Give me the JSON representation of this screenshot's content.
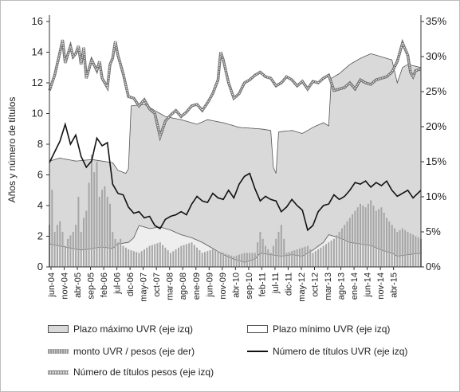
{
  "chart_data": {
    "type": "line",
    "title": "",
    "ylabel": "Años y número de títulos",
    "y_left_ticks": [
      "0",
      "2",
      "4",
      "6",
      "8",
      "10",
      "12",
      "14",
      "16"
    ],
    "y_right_ticks": [
      "0%",
      "5%",
      "10%",
      "15%",
      "20%",
      "25%",
      "30%",
      "35%"
    ],
    "ylim_left": [
      0,
      16
    ],
    "ylim_right": [
      0,
      0.35
    ],
    "x_ticks": [
      "jun-04",
      "nov-04",
      "abr-05",
      "sep-05",
      "feb-06",
      "jul-06",
      "dic-06",
      "may-07",
      "oct-07",
      "mar-08",
      "ago-08",
      "ene-09",
      "jun-09",
      "nov-09",
      "abr-10",
      "sep-10",
      "feb-11",
      "jul-11",
      "dic-11",
      "may-12",
      "oct-12",
      "mar-13",
      "ago-13",
      "ene-14",
      "jun-14",
      "nov-14",
      "abr-15"
    ],
    "period": {
      "start": "jun-04",
      "end": "jun-15",
      "step": "1 month"
    },
    "series": [
      {
        "name": "Plazo máximo UVR (eje izq)",
        "kind": "area",
        "axis": "left",
        "color": "#d9d9d9",
        "anchors": [
          [
            0,
            6.9
          ],
          [
            4,
            7.1
          ],
          [
            10,
            6.9
          ],
          [
            16,
            7.0
          ],
          [
            20,
            6.9
          ],
          [
            24,
            6.8
          ],
          [
            26,
            6.3
          ],
          [
            29,
            6.1
          ],
          [
            30,
            6.4
          ],
          [
            31,
            10.5
          ],
          [
            36,
            10.6
          ],
          [
            40,
            10.2
          ],
          [
            44,
            9.8
          ],
          [
            50,
            9.6
          ],
          [
            56,
            9.3
          ],
          [
            60,
            9.6
          ],
          [
            66,
            9.4
          ],
          [
            72,
            9.1
          ],
          [
            80,
            9.0
          ],
          [
            84,
            8.9
          ],
          [
            85,
            6.5
          ],
          [
            86,
            6.1
          ],
          [
            87,
            8.8
          ],
          [
            92,
            8.9
          ],
          [
            96,
            8.7
          ],
          [
            100,
            9.1
          ],
          [
            104,
            9.4
          ],
          [
            106,
            9.2
          ],
          [
            107,
            12.3
          ],
          [
            110,
            12.6
          ],
          [
            114,
            13.2
          ],
          [
            118,
            13.6
          ],
          [
            122,
            13.9
          ],
          [
            126,
            13.7
          ],
          [
            130,
            13.5
          ],
          [
            132,
            12.0
          ],
          [
            134,
            13.0
          ],
          [
            136,
            13.2
          ],
          [
            141,
            13.0
          ]
        ]
      },
      {
        "name": "Plazo mínimo UVR (eje izq)",
        "kind": "area",
        "axis": "left",
        "color": "#ffffff",
        "anchors": [
          [
            0,
            1.5
          ],
          [
            6,
            1.3
          ],
          [
            12,
            1.1
          ],
          [
            16,
            1.2
          ],
          [
            20,
            1.3
          ],
          [
            24,
            1.2
          ],
          [
            26,
            1.5
          ],
          [
            30,
            1.6
          ],
          [
            32,
            1.9
          ],
          [
            34,
            2.7
          ],
          [
            38,
            2.5
          ],
          [
            42,
            2.6
          ],
          [
            46,
            2.4
          ],
          [
            50,
            2.1
          ],
          [
            54,
            1.9
          ],
          [
            58,
            1.6
          ],
          [
            62,
            1.2
          ],
          [
            66,
            0.8
          ],
          [
            70,
            0.5
          ],
          [
            74,
            0.3
          ],
          [
            78,
            0.5
          ],
          [
            80,
            0.9
          ],
          [
            84,
            0.8
          ],
          [
            88,
            0.7
          ],
          [
            92,
            0.8
          ],
          [
            96,
            0.7
          ],
          [
            100,
            1.1
          ],
          [
            104,
            1.6
          ],
          [
            106,
            2.1
          ],
          [
            110,
            1.9
          ],
          [
            114,
            1.6
          ],
          [
            118,
            1.5
          ],
          [
            122,
            1.4
          ],
          [
            126,
            1.1
          ],
          [
            130,
            0.9
          ],
          [
            132,
            0.7
          ],
          [
            136,
            0.8
          ],
          [
            141,
            0.9
          ]
        ]
      },
      {
        "name": "monto UVR / pesos (eje der)",
        "kind": "bar",
        "axis": "right",
        "color": "#a6a6a6",
        "anchors": [
          [
            0,
            0.06
          ],
          [
            1,
            0.11
          ],
          [
            2,
            0.05
          ],
          [
            3,
            0.06
          ],
          [
            4,
            0.065
          ],
          [
            5,
            0.05
          ],
          [
            6,
            0.03
          ],
          [
            7,
            0.04
          ],
          [
            8,
            0.045
          ],
          [
            9,
            0.05
          ],
          [
            10,
            0.06
          ],
          [
            11,
            0.1
          ],
          [
            12,
            0.05
          ],
          [
            13,
            0.07
          ],
          [
            14,
            0.08
          ],
          [
            15,
            0.12
          ],
          [
            16,
            0.16
          ],
          [
            17,
            0.135
          ],
          [
            18,
            0.15
          ],
          [
            19,
            0.1
          ],
          [
            20,
            0.11
          ],
          [
            21,
            0.115
          ],
          [
            22,
            0.1
          ],
          [
            23,
            0.09
          ],
          [
            24,
            0.05
          ],
          [
            25,
            0.04
          ],
          [
            26,
            0.035
          ],
          [
            27,
            0.04
          ],
          [
            28,
            0.03
          ],
          [
            30,
            0.025
          ],
          [
            34,
            0.02
          ],
          [
            38,
            0.03
          ],
          [
            42,
            0.035
          ],
          [
            46,
            0.02
          ],
          [
            50,
            0.03
          ],
          [
            54,
            0.035
          ],
          [
            58,
            0.02
          ],
          [
            62,
            0.025
          ],
          [
            66,
            0.02
          ],
          [
            70,
            0.015
          ],
          [
            74,
            0.02
          ],
          [
            78,
            0.02
          ],
          [
            80,
            0.05
          ],
          [
            82,
            0.03
          ],
          [
            84,
            0.02
          ],
          [
            88,
            0.06
          ],
          [
            90,
            0.02
          ],
          [
            94,
            0.025
          ],
          [
            98,
            0.03
          ],
          [
            100,
            0.02
          ],
          [
            104,
            0.03
          ],
          [
            108,
            0.04
          ],
          [
            110,
            0.05
          ],
          [
            112,
            0.06
          ],
          [
            114,
            0.07
          ],
          [
            116,
            0.08
          ],
          [
            118,
            0.09
          ],
          [
            120,
            0.085
          ],
          [
            122,
            0.095
          ],
          [
            124,
            0.08
          ],
          [
            126,
            0.085
          ],
          [
            128,
            0.07
          ],
          [
            130,
            0.06
          ],
          [
            132,
            0.05
          ],
          [
            134,
            0.055
          ],
          [
            136,
            0.05
          ],
          [
            141,
            0.04
          ]
        ]
      },
      {
        "name": "Número de títulos UVR (eje izq)",
        "kind": "line",
        "axis": "left",
        "color": "#111111",
        "anchors": [
          [
            0,
            6.8
          ],
          [
            2,
            7.5
          ],
          [
            4,
            8.2
          ],
          [
            6,
            9.3
          ],
          [
            8,
            8.0
          ],
          [
            10,
            8.6
          ],
          [
            12,
            7.2
          ],
          [
            14,
            6.5
          ],
          [
            16,
            6.9
          ],
          [
            18,
            8.4
          ],
          [
            20,
            7.9
          ],
          [
            22,
            8.1
          ],
          [
            24,
            5.4
          ],
          [
            26,
            4.8
          ],
          [
            28,
            4.7
          ],
          [
            30,
            3.9
          ],
          [
            32,
            3.5
          ],
          [
            34,
            3.6
          ],
          [
            36,
            3.2
          ],
          [
            38,
            3.3
          ],
          [
            40,
            2.7
          ],
          [
            42,
            2.5
          ],
          [
            44,
            3.1
          ],
          [
            46,
            3.3
          ],
          [
            48,
            3.4
          ],
          [
            50,
            3.6
          ],
          [
            52,
            3.4
          ],
          [
            54,
            4.1
          ],
          [
            56,
            4.6
          ],
          [
            58,
            4.3
          ],
          [
            60,
            4.2
          ],
          [
            62,
            4.8
          ],
          [
            64,
            4.5
          ],
          [
            66,
            4.4
          ],
          [
            68,
            5.0
          ],
          [
            70,
            4.5
          ],
          [
            72,
            5.4
          ],
          [
            74,
            5.9
          ],
          [
            76,
            6.1
          ],
          [
            78,
            5.1
          ],
          [
            80,
            4.3
          ],
          [
            82,
            4.6
          ],
          [
            84,
            4.4
          ],
          [
            86,
            4.3
          ],
          [
            88,
            3.6
          ],
          [
            90,
            3.9
          ],
          [
            92,
            4.4
          ],
          [
            94,
            4.0
          ],
          [
            96,
            3.7
          ],
          [
            98,
            2.4
          ],
          [
            100,
            2.7
          ],
          [
            102,
            3.6
          ],
          [
            104,
            4.0
          ],
          [
            106,
            4.1
          ],
          [
            108,
            4.7
          ],
          [
            110,
            4.4
          ],
          [
            112,
            4.6
          ],
          [
            114,
            5.0
          ],
          [
            116,
            5.5
          ],
          [
            118,
            5.4
          ],
          [
            120,
            5.6
          ],
          [
            122,
            5.2
          ],
          [
            124,
            5.5
          ],
          [
            126,
            5.3
          ],
          [
            128,
            5.6
          ],
          [
            130,
            5.0
          ],
          [
            132,
            4.6
          ],
          [
            134,
            4.8
          ],
          [
            136,
            5.0
          ],
          [
            138,
            4.5
          ],
          [
            141,
            5.0
          ]
        ]
      },
      {
        "name": "Número de títulos pesos (eje izq)",
        "kind": "line",
        "axis": "left",
        "color": "#8c8c8c",
        "anchors": [
          [
            0,
            11.5
          ],
          [
            2,
            12.5
          ],
          [
            4,
            14.0
          ],
          [
            5,
            14.8
          ],
          [
            6,
            13.3
          ],
          [
            8,
            14.4
          ],
          [
            9,
            13.7
          ],
          [
            10,
            13.9
          ],
          [
            11,
            14.4
          ],
          [
            12,
            13.2
          ],
          [
            13,
            14.3
          ],
          [
            14,
            12.3
          ],
          [
            16,
            13.5
          ],
          [
            18,
            12.8
          ],
          [
            19,
            13.4
          ],
          [
            20,
            12.3
          ],
          [
            22,
            11.7
          ],
          [
            23,
            13.2
          ],
          [
            24,
            13.6
          ],
          [
            25,
            14.7
          ],
          [
            26,
            13.8
          ],
          [
            28,
            12.6
          ],
          [
            30,
            11.1
          ],
          [
            32,
            11.0
          ],
          [
            34,
            10.5
          ],
          [
            36,
            10.9
          ],
          [
            38,
            10.3
          ],
          [
            40,
            10.0
          ],
          [
            42,
            8.5
          ],
          [
            44,
            9.5
          ],
          [
            46,
            9.9
          ],
          [
            48,
            10.2
          ],
          [
            50,
            9.8
          ],
          [
            52,
            10.1
          ],
          [
            54,
            10.5
          ],
          [
            56,
            10.6
          ],
          [
            58,
            10.2
          ],
          [
            60,
            10.7
          ],
          [
            62,
            11.3
          ],
          [
            64,
            12.2
          ],
          [
            65,
            14.0
          ],
          [
            66,
            13.5
          ],
          [
            68,
            12.0
          ],
          [
            70,
            11.0
          ],
          [
            72,
            11.3
          ],
          [
            74,
            12.0
          ],
          [
            76,
            12.2
          ],
          [
            78,
            12.5
          ],
          [
            80,
            12.7
          ],
          [
            82,
            12.4
          ],
          [
            84,
            12.3
          ],
          [
            86,
            11.8
          ],
          [
            88,
            12.0
          ],
          [
            90,
            12.4
          ],
          [
            92,
            12.2
          ],
          [
            94,
            11.8
          ],
          [
            96,
            12.1
          ],
          [
            98,
            11.6
          ],
          [
            100,
            12.1
          ],
          [
            102,
            12.0
          ],
          [
            104,
            12.3
          ],
          [
            106,
            12.5
          ],
          [
            108,
            11.5
          ],
          [
            110,
            11.6
          ],
          [
            112,
            11.7
          ],
          [
            114,
            12.0
          ],
          [
            116,
            11.6
          ],
          [
            118,
            12.2
          ],
          [
            120,
            12.0
          ],
          [
            122,
            11.9
          ],
          [
            124,
            12.2
          ],
          [
            126,
            12.3
          ],
          [
            128,
            12.4
          ],
          [
            130,
            12.7
          ],
          [
            132,
            13.4
          ],
          [
            134,
            14.6
          ],
          [
            136,
            13.8
          ],
          [
            137,
            12.7
          ],
          [
            138,
            12.4
          ],
          [
            139,
            12.8
          ],
          [
            141,
            12.9
          ]
        ]
      }
    ],
    "legend_position": "bottom",
    "grid": false
  }
}
